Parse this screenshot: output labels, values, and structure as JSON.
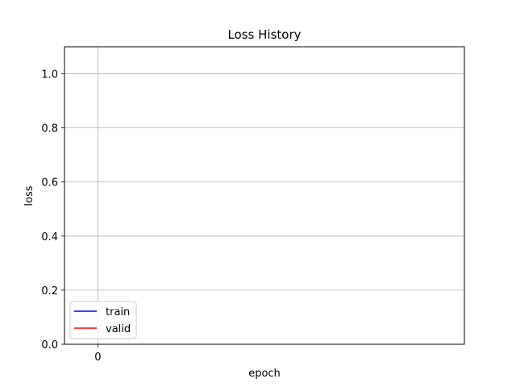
{
  "chart_data": {
    "type": "line",
    "title": "Loss History",
    "xlabel": "epoch",
    "ylabel": "loss",
    "x": [],
    "series": [
      {
        "name": "train",
        "color": "#0000ff",
        "values": []
      },
      {
        "name": "valid",
        "color": "#ff0000",
        "values": []
      }
    ],
    "xlim": [
      -0.5,
      5.5
    ],
    "ylim": [
      0.0,
      1.1
    ],
    "xticks": [
      0
    ],
    "xtick_labels": [
      "0"
    ],
    "yticks": [
      0.0,
      0.2,
      0.4,
      0.6,
      0.8,
      1.0
    ],
    "ytick_labels": [
      "0.0",
      "0.2",
      "0.4",
      "0.6",
      "0.8",
      "1.0"
    ],
    "grid": true,
    "legend_position": "lower-left"
  }
}
